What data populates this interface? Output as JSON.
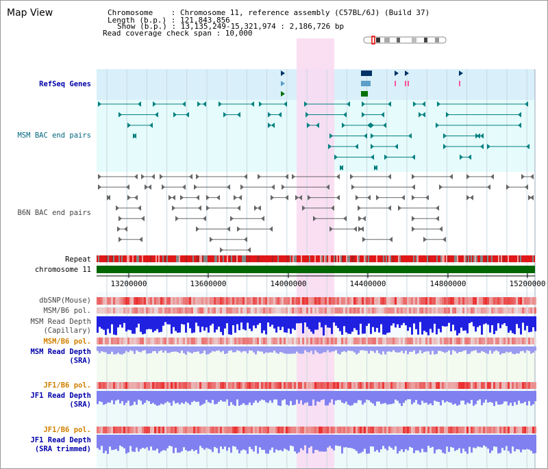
{
  "view_title": "Map View",
  "info": {
    "line1": "Chromosome    : Chromosome 11, reference assembly (C57BL/6J) (Build 37)",
    "line2": "Length (b.p.) : 121,843,856",
    "line3": "Show (b.p.) : 13,135,249-15,321,974 : 2,186,726 bp",
    "line4": "Read coverage check span : 10,000"
  },
  "tracks": {
    "refseq": "RefSeq Genes",
    "msm_bac": "MSM BAC end pairs",
    "b6n_bac": "B6N BAC end pairs",
    "repeat": "Repeat",
    "chromosome": "chromosome 11",
    "dbsnp": "dbSNP(Mouse)",
    "msm_b6_pol_1": "MSM/B6 pol.",
    "msm_depth_cap_1": "MSM Read Depth",
    "msm_depth_cap_2": "(Capillary)",
    "msm_b6_pol_2": "MSM/B6 pol.",
    "msm_depth_sra_1": "MSM Read Depth",
    "msm_depth_sra_2": "(SRA)",
    "jf1_b6_pol_1": "JF1/B6 pol.",
    "jf1_depth_sra_1": "JF1 Read Depth",
    "jf1_depth_sra_2": "(SRA)",
    "jf1_b6_pol_2": "JF1/B6 pol.",
    "jf1_depth_trim_1": "JF1 Read Depth",
    "jf1_depth_trim_2": "(SRA trimmed)"
  },
  "axis": {
    "ticks": [
      "13200000",
      "13600000",
      "14000000",
      "14400000",
      "14800000",
      "15200000"
    ],
    "range": [
      13135249,
      15321974
    ]
  },
  "colors": {
    "highlight": "#f9d9f1",
    "refseq_bg": "#d9f0fa",
    "msm_bg": "#e6fbfb",
    "chromosome_bar": "#006600",
    "depth_dark": "#2020e0",
    "depth_light": "#8080f0",
    "pol_red": "#e03030",
    "teal": "#008080"
  }
}
